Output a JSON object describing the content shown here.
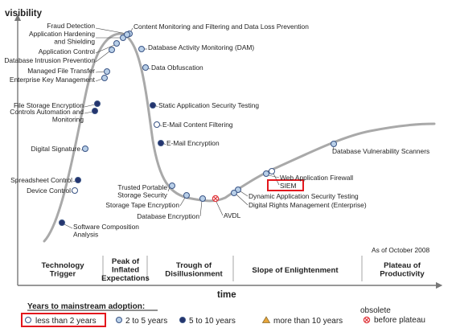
{
  "axes": {
    "y_label": "visibility",
    "x_label": "time"
  },
  "as_of": "As of October 2008",
  "phases": [
    {
      "id": "trigger",
      "lines": [
        "Technology",
        "Trigger"
      ]
    },
    {
      "id": "peak",
      "lines": [
        "Peak of",
        "Inflated",
        "Expectations"
      ]
    },
    {
      "id": "trough",
      "lines": [
        "Trough of",
        "Disillusionment"
      ]
    },
    {
      "id": "slope",
      "lines": [
        "Slope of Enlightenment"
      ]
    },
    {
      "id": "plateau",
      "lines": [
        "Plateau of",
        "Productivity"
      ]
    }
  ],
  "technologies": [
    {
      "name": "Fraud Detection",
      "cat": "light_blue"
    },
    {
      "name": "Application Hardening and Shielding",
      "cat": "light_blue",
      "lines": [
        "Application Hardening",
        "and Shielding"
      ]
    },
    {
      "name": "Application Control",
      "cat": "light_blue"
    },
    {
      "name": "Database Intrusion Prevention",
      "cat": "light_blue"
    },
    {
      "name": "Managed File Transfer",
      "cat": "light_blue"
    },
    {
      "name": "Enterprise Key Management",
      "cat": "light_blue"
    },
    {
      "name": "Content Monitoring and Filtering and Data Loss Prevention",
      "cat": "light_blue"
    },
    {
      "name": "Database Activity Monitoring (DAM)",
      "cat": "light_blue"
    },
    {
      "name": "Data Obfuscation",
      "cat": "light_blue"
    },
    {
      "name": "Static Application Security Testing",
      "cat": "dark_blue"
    },
    {
      "name": "E-Mail Content Filtering",
      "cat": "white"
    },
    {
      "name": "E-Mail Encryption",
      "cat": "dark_blue"
    },
    {
      "name": "File Storage Encryption",
      "cat": "dark_blue"
    },
    {
      "name": "Controls Automation and Monitoring",
      "cat": "dark_blue",
      "lines": [
        "Controls Automation and",
        "Monitoring"
      ]
    },
    {
      "name": "Digital Signature",
      "cat": "light_blue"
    },
    {
      "name": "Spreadsheet Control",
      "cat": "dark_blue"
    },
    {
      "name": "Device Control",
      "cat": "white"
    },
    {
      "name": "Software Composition Analysis",
      "cat": "dark_blue",
      "lines": [
        "Software Composition",
        "Analysis"
      ]
    },
    {
      "name": "Trusted Portable Storage Security",
      "cat": "light_blue",
      "lines": [
        "Trusted Portable",
        "Storage Security"
      ]
    },
    {
      "name": "Storage Tape Encryption",
      "cat": "light_blue"
    },
    {
      "name": "Database Encryption",
      "cat": "light_blue"
    },
    {
      "name": "AVDL",
      "cat": "obsolete"
    },
    {
      "name": "Dynamic Application Security Testing",
      "cat": "light_blue"
    },
    {
      "name": "Digital Rights Management (Enterprise)",
      "cat": "light_blue"
    },
    {
      "name": "SIEM",
      "cat": "white",
      "highlighted": true
    },
    {
      "name": "Web Application Firewall",
      "cat": "light_blue"
    },
    {
      "name": "Database Vulnerability Scanners",
      "cat": "light_blue"
    }
  ],
  "legend": {
    "title": "Years to mainstream adoption:",
    "items": [
      {
        "cat": "white",
        "label": "less than 2 years",
        "highlighted": true
      },
      {
        "cat": "light_blue",
        "label": "2 to 5 years"
      },
      {
        "cat": "dark_blue",
        "label": "5 to 10 years"
      },
      {
        "cat": "triangle",
        "label": "more than 10 years"
      },
      {
        "cat": "obsolete",
        "lines": [
          "obsolete",
          "before plateau"
        ]
      }
    ]
  },
  "colors": {
    "curve": "#a9a9a9",
    "white": "#ffffff",
    "light_blue": "#b8cfe8",
    "dark_blue": "#24346e",
    "marker_outline": "#3a5485",
    "triangle": "#e8a53a",
    "obsolete": "#e0393e",
    "highlight": "#e3171d",
    "divider": "#b5b5b5"
  }
}
